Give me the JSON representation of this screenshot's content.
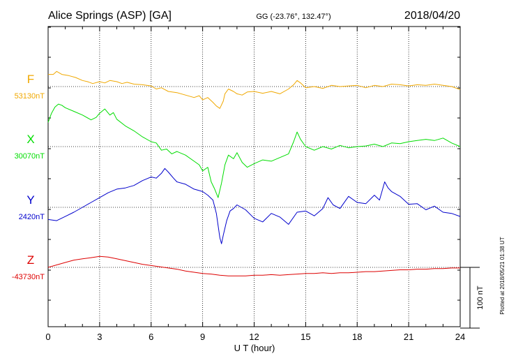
{
  "header": {
    "station": "Alice Springs (ASP)  [GA]",
    "coords": "GG (-23.76°, 132.47°)",
    "date": "2018/04/20"
  },
  "side_note": "Plotted at 2018/05/21 01:38 UT",
  "scale_bar": {
    "label": "100 nT",
    "value": 100
  },
  "colors": {
    "F": "#f0a800",
    "X": "#00dd00",
    "Y": "#0000cc",
    "Z": "#dd0000",
    "grid": "#000000"
  },
  "chart_data": {
    "type": "line",
    "xlabel": "U T (hour)",
    "xlim": [
      0,
      24
    ],
    "x_ticks": [
      "0",
      "3",
      "6",
      "9",
      "12",
      "15",
      "18",
      "21",
      "24"
    ],
    "series": [
      {
        "name": "F",
        "baseline_label": "53130nT",
        "baseline": 53130,
        "x": [
          0,
          0.3,
          0.5,
          0.8,
          1.2,
          1.6,
          2,
          2.3,
          2.6,
          3,
          3.3,
          3.6,
          4,
          4.3,
          4.6,
          5,
          5.5,
          6,
          6.3,
          6.6,
          7,
          7.5,
          8,
          8.5,
          8.8,
          9,
          9.3,
          9.6,
          9.8,
          10,
          10.2,
          10.3,
          10.5,
          10.8,
          11,
          11.3,
          11.6,
          12,
          12.5,
          13,
          13.5,
          14,
          14.3,
          14.5,
          14.7,
          15,
          15.5,
          16,
          16.5,
          17,
          17.5,
          18,
          18.5,
          19,
          19.5,
          20,
          20.5,
          21,
          21.5,
          22,
          22.5,
          23,
          23.5,
          24
        ],
        "y": [
          53150,
          53150,
          53155,
          53150,
          53148,
          53145,
          53140,
          53138,
          53135,
          53138,
          53136,
          53140,
          53138,
          53135,
          53137,
          53134,
          53133,
          53131,
          53126,
          53128,
          53122,
          53120,
          53116,
          53112,
          53115,
          53108,
          53112,
          53104,
          53098,
          53094,
          53106,
          53118,
          53126,
          53122,
          53118,
          53116,
          53121,
          53122,
          53119,
          53122,
          53118,
          53126,
          53133,
          53140,
          53136,
          53128,
          53130,
          53127,
          53132,
          53130,
          53131,
          53132,
          53128,
          53132,
          53130,
          53134,
          53133,
          53131,
          53133,
          53132,
          53134,
          53132,
          53130,
          53125
        ]
      },
      {
        "name": "X",
        "baseline_label": "30070nT",
        "baseline": 30070,
        "x": [
          0,
          0.2,
          0.4,
          0.6,
          0.8,
          1,
          1.5,
          2,
          2.5,
          2.8,
          3,
          3.3,
          3.6,
          3.8,
          4,
          4.5,
          5,
          5.5,
          6,
          6.3,
          6.6,
          6.9,
          7.2,
          7.5,
          8,
          8.5,
          8.8,
          9,
          9.3,
          9.5,
          9.7,
          9.9,
          10.1,
          10.3,
          10.5,
          10.8,
          11,
          11.3,
          11.6,
          12,
          12.5,
          13,
          13.5,
          14,
          14.3,
          14.5,
          14.7,
          15,
          15.5,
          16,
          16.5,
          17,
          17.5,
          18,
          18.5,
          19,
          19.5,
          20,
          20.5,
          21,
          21.5,
          22,
          22.5,
          23,
          23.5,
          24
        ],
        "y": [
          30110,
          30125,
          30135,
          30140,
          30138,
          30134,
          30128,
          30122,
          30114,
          30118,
          30125,
          30132,
          30122,
          30126,
          30115,
          30104,
          30096,
          30086,
          30078,
          30076,
          30064,
          30066,
          30058,
          30062,
          30056,
          30046,
          30040,
          30030,
          30036,
          30012,
          30000,
          29986,
          30010,
          30040,
          30056,
          30050,
          30060,
          30044,
          30036,
          30042,
          30048,
          30046,
          30052,
          30058,
          30078,
          30094,
          30082,
          30070,
          30064,
          30070,
          30066,
          30072,
          30068,
          30070,
          30071,
          30074,
          30070,
          30076,
          30075,
          30078,
          30080,
          30082,
          30080,
          30084,
          30076,
          30070
        ]
      },
      {
        "name": "Y",
        "baseline_label": "2420nT",
        "baseline": 2420,
        "x": [
          0,
          0.5,
          1,
          1.5,
          2,
          2.5,
          3,
          3.5,
          4,
          4.5,
          5,
          5.5,
          6,
          6.3,
          6.6,
          6.8,
          7,
          7.3,
          7.5,
          8,
          8.5,
          9,
          9.3,
          9.6,
          9.8,
          10,
          10.1,
          10.2,
          10.4,
          10.6,
          10.8,
          11,
          11.5,
          12,
          12.5,
          13,
          13.5,
          14,
          14.5,
          15,
          15.5,
          16,
          16.3,
          16.6,
          17,
          17.5,
          18,
          18.5,
          19,
          19.3,
          19.6,
          19.8,
          20,
          20.5,
          21,
          21.5,
          22,
          22.5,
          23,
          23.5,
          24
        ],
        "y": [
          2400,
          2398,
          2405,
          2412,
          2420,
          2428,
          2436,
          2444,
          2450,
          2452,
          2456,
          2464,
          2470,
          2468,
          2476,
          2484,
          2478,
          2468,
          2462,
          2458,
          2450,
          2446,
          2440,
          2432,
          2410,
          2370,
          2360,
          2374,
          2398,
          2414,
          2418,
          2424,
          2416,
          2402,
          2396,
          2410,
          2404,
          2392,
          2412,
          2414,
          2406,
          2418,
          2436,
          2424,
          2418,
          2438,
          2428,
          2426,
          2440,
          2432,
          2462,
          2452,
          2446,
          2438,
          2425,
          2426,
          2416,
          2422,
          2412,
          2410,
          2405
        ]
      },
      {
        "name": "Z",
        "baseline_label": "-43730nT",
        "baseline": -43730,
        "x": [
          0,
          0.5,
          1,
          1.5,
          2,
          2.5,
          3,
          3.5,
          4,
          4.5,
          5,
          5.5,
          6,
          6.5,
          7,
          7.5,
          8,
          8.5,
          9,
          9.5,
          10,
          10.5,
          11,
          11.5,
          12,
          12.5,
          13,
          13.5,
          14,
          14.5,
          15,
          15.5,
          16,
          16.5,
          17,
          17.5,
          18,
          18.5,
          19,
          19.5,
          20,
          20.5,
          21,
          21.5,
          22,
          22.5,
          23,
          23.5,
          24
        ],
        "y": [
          -43730,
          -43726,
          -43722,
          -43718,
          -43716,
          -43714,
          -43712,
          -43713,
          -43716,
          -43719,
          -43722,
          -43725,
          -43727,
          -43729,
          -43731,
          -43733,
          -43736,
          -43738,
          -43740,
          -43741,
          -43743,
          -43744,
          -43744,
          -43744,
          -43743,
          -43743,
          -43742,
          -43743,
          -43742,
          -43741,
          -43740,
          -43740,
          -43739,
          -43740,
          -43739,
          -43739,
          -43738,
          -43737,
          -43737,
          -43736,
          -43735,
          -43734,
          -43734,
          -43733,
          -43733,
          -43732,
          -43732,
          -43731,
          -43731
        ]
      }
    ]
  }
}
